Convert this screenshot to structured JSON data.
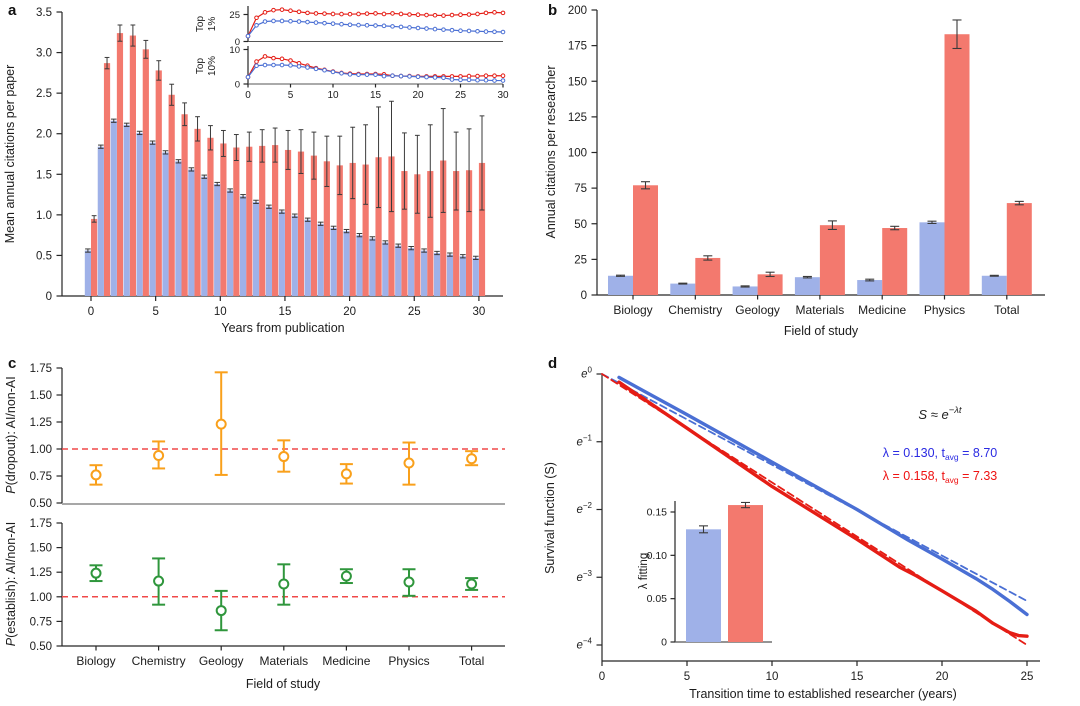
{
  "panel_letters": [
    "a",
    "b",
    "c",
    "d"
  ],
  "colors": {
    "bar_blue": "#9fb1e8",
    "bar_red": "#f3796e",
    "err_dark": "#3a3a3a",
    "line_blue": "#4a6fd4",
    "line_red": "#e51d15",
    "ref_red": "#f04848",
    "orange": "#f9a01b",
    "green": "#2f963c",
    "axis": "#262626",
    "grey_spine": "#8a8a8a",
    "text_blue": "#2a2ae2",
    "text_red": "#ee1111"
  },
  "chart_data": [
    {
      "id": "a",
      "type": "bar",
      "xlabel": "Years from publication",
      "ylabel": "Mean annual citations per paper",
      "xlim": [
        0,
        30
      ],
      "ylim": [
        0,
        3.5
      ],
      "xticks": [
        0,
        5,
        10,
        15,
        20,
        25,
        30
      ],
      "yticks": [
        0,
        0.5,
        1.0,
        1.5,
        2.0,
        2.5,
        3.0,
        3.5
      ],
      "ytick_labels": [
        "0",
        "0.5",
        "1.0",
        "1.5",
        "2.0",
        "2.5",
        "3.0",
        "3.5"
      ],
      "x": [
        0,
        1,
        2,
        3,
        4,
        5,
        6,
        7,
        8,
        9,
        10,
        11,
        12,
        13,
        14,
        15,
        16,
        17,
        18,
        19,
        20,
        21,
        22,
        23,
        24,
        25,
        26,
        27,
        28,
        29,
        30
      ],
      "series": [
        {
          "name": "blue",
          "values": [
            0.56,
            1.84,
            2.16,
            2.11,
            2.01,
            1.89,
            1.77,
            1.66,
            1.56,
            1.47,
            1.38,
            1.3,
            1.23,
            1.16,
            1.1,
            1.04,
            0.99,
            0.94,
            0.89,
            0.84,
            0.8,
            0.75,
            0.71,
            0.66,
            0.62,
            0.59,
            0.56,
            0.53,
            0.51,
            0.49,
            0.47
          ],
          "errors": [
            0.02,
            0.02,
            0.02,
            0.02,
            0.02,
            0.02,
            0.02,
            0.02,
            0.02,
            0.02,
            0.02,
            0.02,
            0.02,
            0.02,
            0.02,
            0.02,
            0.02,
            0.02,
            0.02,
            0.02,
            0.02,
            0.02,
            0.02,
            0.02,
            0.02,
            0.02,
            0.02,
            0.02,
            0.02,
            0.02,
            0.02
          ]
        },
        {
          "name": "red",
          "values": [
            0.95,
            2.87,
            3.24,
            3.21,
            3.04,
            2.78,
            2.48,
            2.24,
            2.06,
            1.95,
            1.88,
            1.83,
            1.84,
            1.85,
            1.86,
            1.8,
            1.78,
            1.73,
            1.66,
            1.61,
            1.64,
            1.62,
            1.71,
            1.72,
            1.54,
            1.5,
            1.54,
            1.67,
            1.54,
            1.55,
            1.64
          ],
          "errors": [
            0.04,
            0.07,
            0.1,
            0.13,
            0.11,
            0.12,
            0.13,
            0.14,
            0.15,
            0.15,
            0.16,
            0.16,
            0.18,
            0.2,
            0.21,
            0.24,
            0.27,
            0.29,
            0.31,
            0.36,
            0.44,
            0.49,
            0.62,
            0.68,
            0.47,
            0.48,
            0.57,
            0.64,
            0.48,
            0.51,
            0.58
          ]
        }
      ]
    },
    {
      "id": "a_inset_top1",
      "type": "line",
      "ylabel_lines": [
        "Top",
        "1%"
      ],
      "yticks": [
        0,
        25
      ],
      "ytick_labels": [
        "0",
        "25"
      ],
      "ylim": [
        0,
        31
      ],
      "x": [
        0,
        1,
        2,
        3,
        4,
        5,
        6,
        7,
        8,
        9,
        10,
        11,
        12,
        13,
        14,
        15,
        16,
        17,
        18,
        19,
        20,
        21,
        22,
        23,
        24,
        25,
        26,
        27,
        28,
        29,
        30
      ],
      "series": [
        {
          "name": "red",
          "values": [
            5,
            22,
            27,
            29,
            29.5,
            28.5,
            27.5,
            26.5,
            26,
            25.8,
            25.5,
            25.4,
            25.3,
            25.5,
            25.8,
            26,
            25.5,
            26,
            25.5,
            25,
            24.8,
            24.5,
            24.3,
            24,
            24.5,
            24.8,
            25,
            25.5,
            26.5,
            27,
            26.5
          ]
        },
        {
          "name": "blue",
          "values": [
            5,
            15,
            18.5,
            19,
            19,
            18.8,
            18.5,
            18,
            17.5,
            17,
            16.5,
            16,
            15.5,
            15.2,
            15,
            14.8,
            14.5,
            14,
            13.5,
            13,
            12.5,
            12,
            11.5,
            11,
            10.5,
            10,
            9.8,
            9.5,
            9.2,
            9,
            8.8
          ]
        }
      ]
    },
    {
      "id": "a_inset_top10",
      "type": "line",
      "ylabel_lines": [
        "Top",
        "10%"
      ],
      "yticks": [
        0,
        10
      ],
      "ytick_labels": [
        "0",
        "10"
      ],
      "ylim": [
        0,
        10.5
      ],
      "xticks": [
        0,
        5,
        10,
        15,
        20,
        25,
        30
      ],
      "x": [
        0,
        1,
        2,
        3,
        4,
        5,
        6,
        7,
        8,
        9,
        10,
        11,
        12,
        13,
        14,
        15,
        16,
        17,
        18,
        19,
        20,
        21,
        22,
        23,
        24,
        25,
        26,
        27,
        28,
        29,
        30
      ],
      "series": [
        {
          "name": "red",
          "values": [
            2,
            6.5,
            8,
            7.5,
            7.3,
            6.8,
            6,
            5.3,
            4.6,
            4.1,
            3.6,
            3.2,
            3.0,
            2.9,
            2.9,
            2.9,
            2.8,
            2.4,
            2.3,
            2.3,
            2.2,
            2.2,
            2.2,
            2.2,
            2.2,
            2.2,
            2.3,
            2.3,
            2.4,
            2.4,
            2.4
          ]
        },
        {
          "name": "blue",
          "values": [
            2,
            5.3,
            5.5,
            5.5,
            5.5,
            5.4,
            5.1,
            4.8,
            4.4,
            4.0,
            3.5,
            3.1,
            2.8,
            2.7,
            2.7,
            2.7,
            2.3,
            2.4,
            2.3,
            2.2,
            2.1,
            2.0,
            1.9,
            1.8,
            1.3,
            1.2,
            1.2,
            1.1,
            1.1,
            1.0,
            1.0
          ]
        }
      ]
    },
    {
      "id": "b",
      "type": "bar",
      "xlabel": "Field of study",
      "ylabel": "Annual citations per researcher",
      "categories": [
        "Biology",
        "Chemistry",
        "Geology",
        "Materials",
        "Medicine",
        "Physics",
        "Total"
      ],
      "ylim": [
        0,
        200
      ],
      "yticks": [
        0,
        25,
        50,
        75,
        100,
        125,
        150,
        175,
        200
      ],
      "ytick_labels": [
        "0",
        "25",
        "50",
        "75",
        "100",
        "125",
        "150",
        "175",
        "200"
      ],
      "series": [
        {
          "name": "blue",
          "values": [
            13.5,
            8,
            6,
            12.5,
            10.5,
            51,
            13.5
          ],
          "errors": [
            0.4,
            0.3,
            0.4,
            0.5,
            0.6,
            0.8,
            0.3
          ]
        },
        {
          "name": "red",
          "values": [
            77,
            26,
            14.5,
            49,
            47,
            183,
            64.5
          ],
          "errors": [
            2.5,
            1.5,
            1.5,
            3,
            1.2,
            10,
            1.2
          ]
        }
      ]
    },
    {
      "id": "c_dropout",
      "type": "scatter",
      "ylabel_prefix": "P",
      "ylabel_rest": "(dropout): AI/non-AI",
      "categories": [
        "Biology",
        "Chemistry",
        "Geology",
        "Materials",
        "Medicine",
        "Physics",
        "Total"
      ],
      "ylim": [
        0.5,
        1.75
      ],
      "yticks": [
        0.5,
        0.75,
        1.0,
        1.25,
        1.5,
        1.75
      ],
      "ytick_labels": [
        "0.50",
        "0.75",
        "1.00",
        "1.25",
        "1.50",
        "1.75"
      ],
      "reference_line": 1.0,
      "color": "orange",
      "values": [
        0.76,
        0.94,
        1.23,
        0.93,
        0.77,
        0.87,
        0.91
      ],
      "lower": [
        0.67,
        0.82,
        0.76,
        0.79,
        0.68,
        0.67,
        0.85
      ],
      "upper": [
        0.85,
        1.07,
        1.71,
        1.08,
        0.86,
        1.06,
        0.98
      ]
    },
    {
      "id": "c_establish",
      "type": "scatter",
      "xlabel": "Field of study",
      "ylabel_prefix": "P",
      "ylabel_rest": "(establish): AI/non-AI",
      "categories": [
        "Biology",
        "Chemistry",
        "Geology",
        "Materials",
        "Medicine",
        "Physics",
        "Total"
      ],
      "ylim": [
        0.5,
        1.75
      ],
      "yticks": [
        0.5,
        0.75,
        1.0,
        1.25,
        1.5,
        1.75
      ],
      "ytick_labels": [
        "0.50",
        "0.75",
        "1.00",
        "1.25",
        "1.50",
        "1.75"
      ],
      "reference_line": 1.0,
      "color": "green",
      "values": [
        1.24,
        1.16,
        0.86,
        1.13,
        1.21,
        1.15,
        1.13
      ],
      "lower": [
        1.16,
        0.92,
        0.66,
        0.92,
        1.14,
        1.01,
        1.07
      ],
      "upper": [
        1.32,
        1.39,
        1.06,
        1.33,
        1.28,
        1.28,
        1.19
      ]
    },
    {
      "id": "d",
      "type": "line",
      "xlabel": "Transition time to established researcher (years)",
      "ylabel": "Survival function (S)",
      "xlim": [
        0,
        25
      ],
      "xticks": [
        0,
        5,
        10,
        15,
        20,
        25
      ],
      "ytick_values": [
        0,
        -1,
        -2,
        -3,
        -4
      ],
      "ytick_base": "e",
      "ytick_exponents": [
        "0",
        "−1",
        "−2",
        "−3",
        "−4"
      ],
      "annotation": {
        "formula_base": "S ≈ e",
        "formula_sup": "−λt",
        "blue_line": {
          "pre": "λ = 0.130, t",
          "sub": "avg",
          "post": " = 8.70"
        },
        "red_line": {
          "pre": "λ = 0.158, t",
          "sub": "avg",
          "post": " = 7.33"
        }
      },
      "series": [
        {
          "name": "blue_solid",
          "color": "blue",
          "style": "solid",
          "points": [
            [
              1,
              -0.05
            ],
            [
              5,
              -0.6
            ],
            [
              10,
              -1.3
            ],
            [
              15,
              -2.0
            ],
            [
              18,
              -2.45
            ],
            [
              20,
              -2.73
            ],
            [
              22,
              -3.02
            ],
            [
              23,
              -3.18
            ],
            [
              24,
              -3.36
            ],
            [
              25,
              -3.55
            ]
          ]
        },
        {
          "name": "blue_dashed_fit",
          "color": "blue",
          "style": "dashed",
          "points": [
            [
              0,
              0
            ],
            [
              25,
              -3.35
            ]
          ]
        },
        {
          "name": "red_solid",
          "color": "red",
          "style": "solid",
          "points": [
            [
              1,
              -0.12
            ],
            [
              5,
              -0.8
            ],
            [
              10,
              -1.66
            ],
            [
              15,
              -2.44
            ],
            [
              17.5,
              -2.85
            ],
            [
              18.5,
              -2.98
            ],
            [
              20,
              -3.2
            ],
            [
              22,
              -3.5
            ],
            [
              23,
              -3.68
            ],
            [
              24,
              -3.82
            ],
            [
              24.5,
              -3.86
            ],
            [
              25,
              -3.87
            ]
          ]
        },
        {
          "name": "red_dashed_fit",
          "color": "red",
          "style": "dashed",
          "points": [
            [
              0,
              0
            ],
            [
              25,
              -4.0
            ]
          ]
        }
      ]
    },
    {
      "id": "d_inset",
      "type": "bar",
      "ylabel": "λ fitting",
      "yticks": [
        0,
        0.05,
        0.1,
        0.15
      ],
      "ytick_labels": [
        "0",
        "0.05",
        "0.10",
        "0.15"
      ],
      "bars": [
        {
          "name": "blue",
          "value": 0.13,
          "error": 0.004
        },
        {
          "name": "red",
          "value": 0.158,
          "error": 0.003
        }
      ]
    }
  ]
}
